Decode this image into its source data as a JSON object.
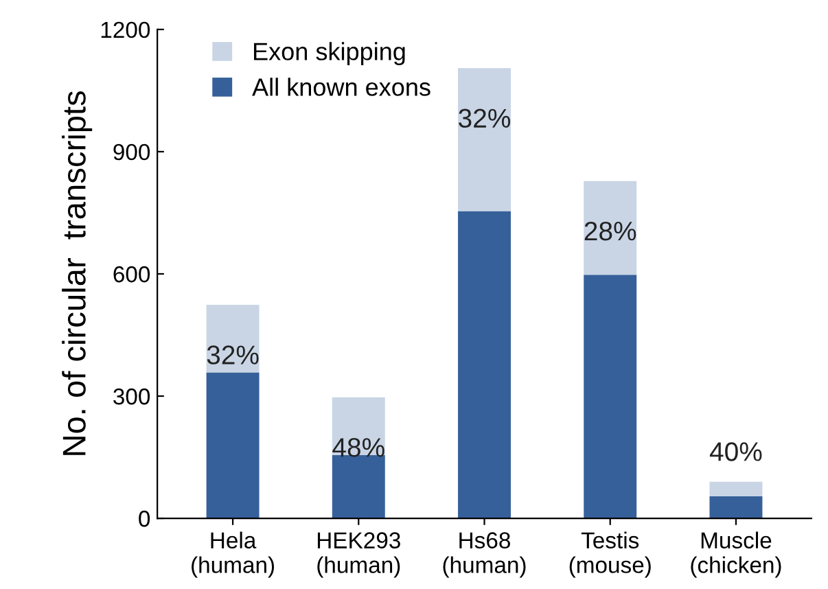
{
  "chart_data": {
    "type": "bar",
    "stacked": true,
    "ylabel": "No. of circular  transcripts",
    "categories": [
      "Hela\n(human)",
      "HEK293\n(human)",
      "Hs68\n(human)",
      "Testis\n(mouse)",
      "Muscle\n(chicken)"
    ],
    "series": [
      {
        "name": "All known exons",
        "color": "#36609a",
        "values": [
          358,
          155,
          754,
          598,
          54
        ]
      },
      {
        "name": "Exon skipping",
        "color": "#c9d5e5",
        "values": [
          166,
          142,
          351,
          230,
          36
        ]
      }
    ],
    "ylim": [
      0,
      1200
    ],
    "yticks": [
      0,
      300,
      600,
      900,
      1200
    ],
    "grid": false,
    "legend": "top left",
    "annotations": [
      "32%",
      "48%",
      "32%",
      "28%",
      "40%"
    ]
  }
}
